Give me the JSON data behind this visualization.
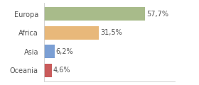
{
  "categories": [
    "Europa",
    "Africa",
    "Asia",
    "Oceania"
  ],
  "values": [
    57.7,
    31.5,
    6.2,
    4.6
  ],
  "labels": [
    "57,7%",
    "31,5%",
    "6,2%",
    "4,6%"
  ],
  "bar_colors": [
    "#a8bb8a",
    "#e8b87a",
    "#7b9fd4",
    "#c95b5b"
  ],
  "xlim": [
    0,
    75
  ],
  "background_color": "#ffffff",
  "text_color": "#555555",
  "bar_height": 0.72,
  "label_fontsize": 7.0,
  "category_fontsize": 7.0
}
